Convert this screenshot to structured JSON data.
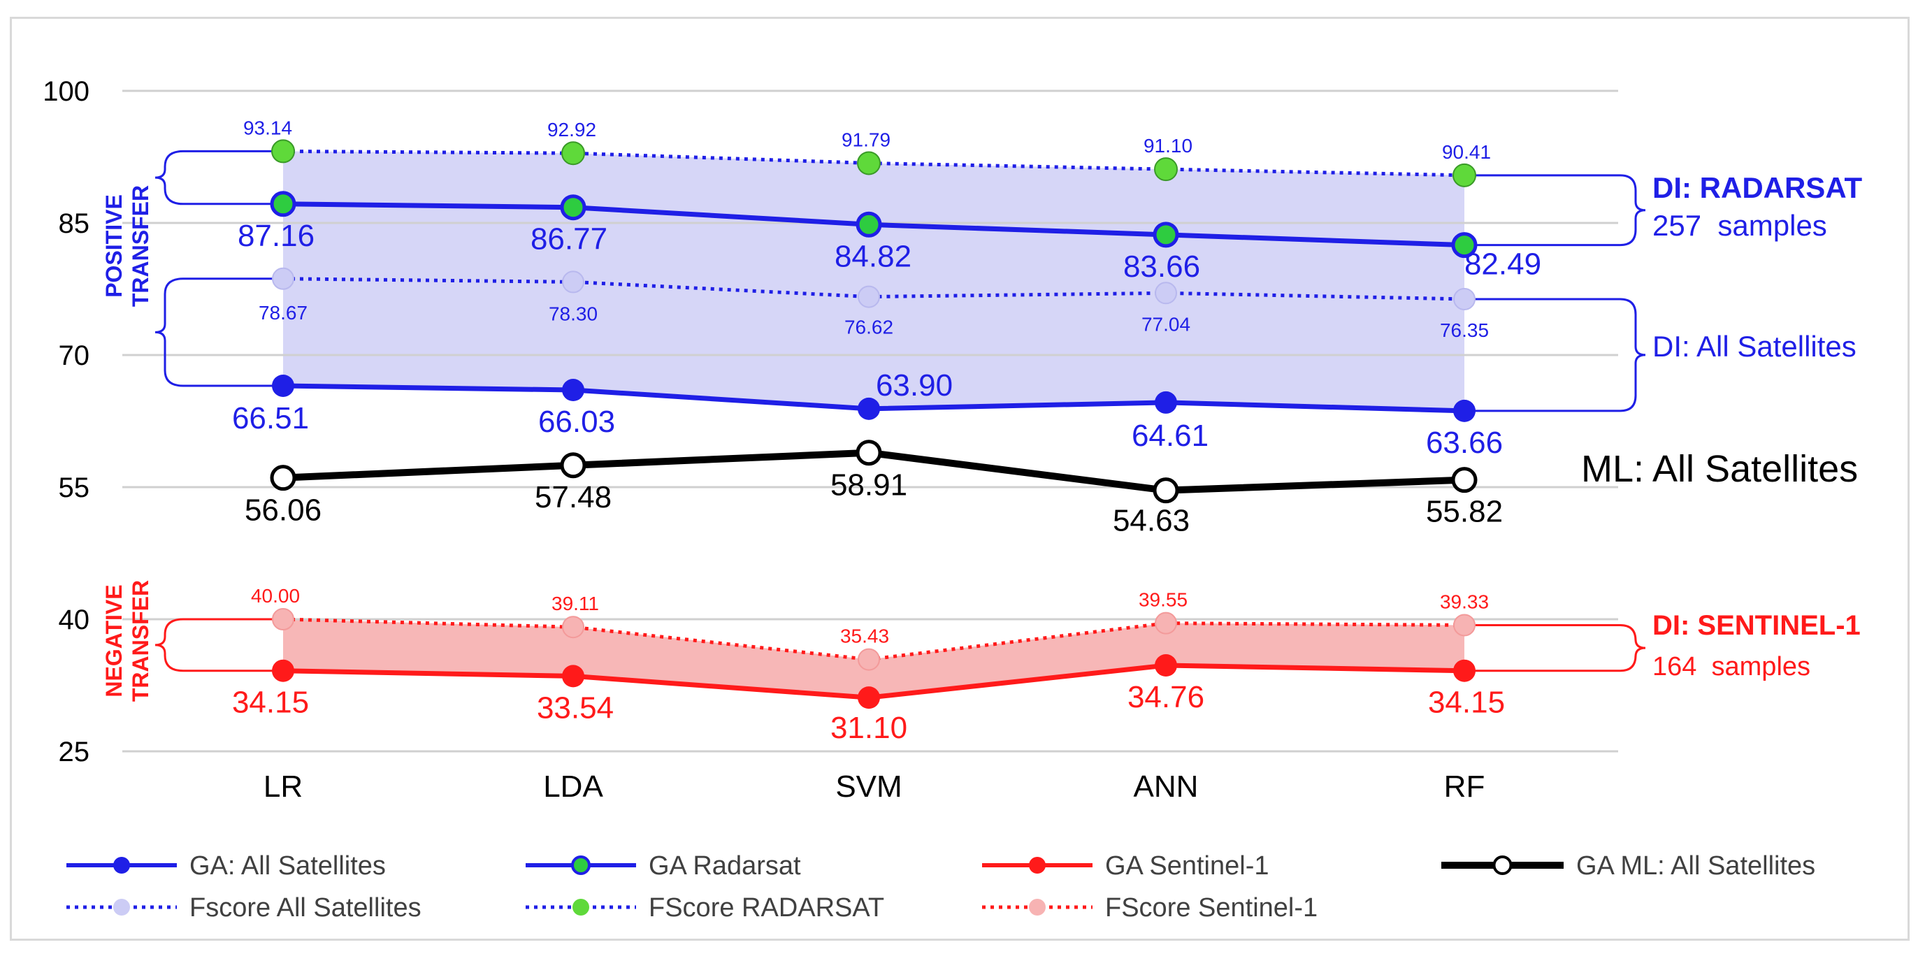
{
  "chart_data": {
    "type": "line",
    "categories": [
      "LR",
      "LDA",
      "SVM",
      "ANN",
      "RF"
    ],
    "ylim": [
      25,
      100
    ],
    "yticks": [
      25,
      40,
      55,
      70,
      85,
      100
    ],
    "grid": true,
    "legend_position": "bottom",
    "series": [
      {
        "id": "ga_all",
        "name": "GA: All Satellites",
        "values": [
          66.51,
          66.03,
          63.9,
          64.61,
          63.66
        ],
        "color": "#1f1fe6",
        "line": "solid",
        "marker": "filled",
        "marker_fill": "#1f1fe6"
      },
      {
        "id": "ga_radarsat",
        "name": "GA Radarsat",
        "values": [
          87.16,
          86.77,
          84.82,
          83.66,
          82.49
        ],
        "color": "#1f1fe6",
        "line": "solid",
        "marker": "filled",
        "marker_fill": "#2ecc40"
      },
      {
        "id": "ga_sentinel",
        "name": "GA Sentinel-1",
        "values": [
          34.15,
          33.54,
          31.1,
          34.76,
          34.15
        ],
        "color": "#ff1a1a",
        "line": "solid",
        "marker": "filled",
        "marker_fill": "#ff1a1a"
      },
      {
        "id": "ga_ml",
        "name": "GA ML: All Satellites",
        "values": [
          56.06,
          57.48,
          58.91,
          54.63,
          55.82
        ],
        "color": "#000000",
        "line": "solid",
        "marker": "hollow",
        "marker_fill": "#ffffff"
      },
      {
        "id": "fs_all",
        "name": "Fscore All Satellites",
        "values": [
          78.67,
          78.3,
          76.62,
          77.04,
          76.35
        ],
        "color": "#1f1fe6",
        "line": "dotted",
        "marker": "filled",
        "marker_fill": "#ccccf5"
      },
      {
        "id": "fs_radarsat",
        "name": "FScore RADARSAT",
        "values": [
          93.14,
          92.92,
          91.79,
          91.1,
          90.41
        ],
        "color": "#1f1fe6",
        "line": "dotted",
        "marker": "filled",
        "marker_fill": "#5fd93a"
      },
      {
        "id": "fs_sentinel",
        "name": "FScore Sentinel-1",
        "values": [
          40.0,
          39.11,
          35.43,
          39.55,
          39.33
        ],
        "color": "#ff1a1a",
        "line": "dotted",
        "marker": "filled",
        "marker_fill": "#f7b3b3"
      }
    ],
    "value_labels": {
      "ga_all": [
        "66.51",
        "66.03",
        "63.90",
        "64.61",
        "63.66"
      ],
      "ga_radarsat": [
        "87.16",
        "86.77",
        "84.82",
        "83.66",
        "82.49"
      ],
      "ga_sentinel": [
        "34.15",
        "33.54",
        "31.10",
        "34.76",
        "34.15"
      ],
      "ga_ml": [
        "56.06",
        "57.48",
        "58.91",
        "54.63",
        "55.82"
      ],
      "fs_all": [
        "78.67",
        "78.30",
        "76.62",
        "77.04",
        "76.35"
      ],
      "fs_radarsat": [
        "93.14",
        "92.92",
        "91.79",
        "91.10",
        "90.41"
      ],
      "fs_sentinel": [
        "40.00",
        "39.11",
        "35.43",
        "39.55",
        "39.33"
      ]
    },
    "annotations": {
      "positive_transfer": [
        "POSITIVE",
        "TRANSFER"
      ],
      "negative_transfer": [
        "NEGATIVE",
        "TRANSFER"
      ],
      "di_radarsat_title": "DI: RADARSAT",
      "di_radarsat_samples": "257  samples",
      "di_all": "DI: All Satellites",
      "ml_all": "ML: All Satellites",
      "di_sentinel_title": "DI: SENTINEL-1",
      "di_sentinel_samples": "164  samples"
    },
    "colors": {
      "blue": "#1f1fe6",
      "red": "#ff1a1a",
      "black": "#000000",
      "band_blue": "#d4d4f7",
      "band_red": "#f7b3b3",
      "grid": "#d0d0d0"
    }
  }
}
